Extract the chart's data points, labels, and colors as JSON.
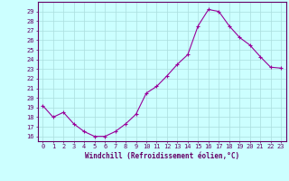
{
  "x": [
    0,
    1,
    2,
    3,
    4,
    5,
    6,
    7,
    8,
    9,
    10,
    11,
    12,
    13,
    14,
    15,
    16,
    17,
    18,
    19,
    20,
    21,
    22,
    23
  ],
  "y": [
    19.2,
    18.0,
    18.5,
    17.3,
    16.5,
    16.0,
    16.0,
    16.5,
    17.3,
    18.3,
    20.5,
    21.2,
    22.3,
    23.5,
    24.5,
    27.5,
    29.2,
    29.0,
    27.5,
    26.3,
    25.5,
    24.3,
    23.2,
    23.1
  ],
  "line_color": "#990099",
  "marker": "+",
  "bg_color": "#ccffff",
  "grid_color": "#aadddd",
  "xlabel": "Windchill (Refroidissement éolien,°C)",
  "ylabel_ticks": [
    16,
    17,
    18,
    19,
    20,
    21,
    22,
    23,
    24,
    25,
    26,
    27,
    28,
    29
  ],
  "ylim": [
    15.5,
    30.0
  ],
  "xlim": [
    -0.5,
    23.5
  ],
  "axis_color": "#660066",
  "tick_color": "#660066",
  "label_fontsize": 5.5,
  "tick_fontsize": 5.0
}
